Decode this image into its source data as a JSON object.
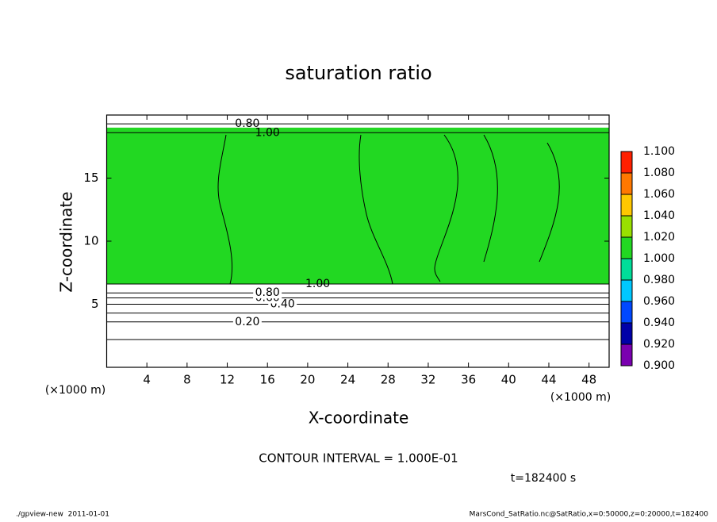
{
  "chart_data": {
    "type": "contour",
    "title": "saturation ratio",
    "x_label": "X-coordinate",
    "y_label": "Z-coordinate",
    "x_unit_left": "(×1000 m)",
    "x_unit_right": "(×1000 m)",
    "xlim": [
      0,
      50
    ],
    "ylim": [
      0,
      20
    ],
    "xticks": [
      4,
      8,
      12,
      16,
      20,
      24,
      28,
      32,
      36,
      40,
      44,
      48
    ],
    "yticks": [
      5,
      10,
      15
    ],
    "shaded_region": {
      "value": 1.01,
      "z": [
        6.6,
        19.0
      ]
    },
    "contours": [
      {
        "level": 0.1,
        "z": 2.2
      },
      {
        "level": 0.2,
        "z": 3.6,
        "label": "0.20"
      },
      {
        "level": 0.3,
        "z": 4.3
      },
      {
        "level": 0.4,
        "z": 5.0,
        "label": "0.40"
      },
      {
        "level": 0.6,
        "z": 5.5,
        "label": "0.60"
      },
      {
        "level": 0.8,
        "z": 5.9,
        "label": "0.80"
      },
      {
        "level": 1.0,
        "z": 6.6,
        "label": "1.00"
      },
      {
        "level": 1.0,
        "z": 18.6,
        "label": "1.00"
      },
      {
        "level": 0.8,
        "z": 19.3,
        "label": "0.80"
      }
    ],
    "colorbar": {
      "ticks": [
        {
          "value": 0.9,
          "label": "0.900"
        },
        {
          "value": 0.92,
          "label": "0.920"
        },
        {
          "value": 0.94,
          "label": "0.940"
        },
        {
          "value": 0.96,
          "label": "0.960"
        },
        {
          "value": 0.98,
          "label": "0.980"
        },
        {
          "value": 1.0,
          "label": "1.000"
        },
        {
          "value": 1.02,
          "label": "1.020"
        },
        {
          "value": 1.04,
          "label": "1.040"
        },
        {
          "value": 1.06,
          "label": "1.060"
        },
        {
          "value": 1.08,
          "label": "1.080"
        },
        {
          "value": 1.1,
          "label": "1.100"
        }
      ],
      "colors": [
        "#7a00b0",
        "#0000a8",
        "#0048ff",
        "#00c8ff",
        "#00dd99",
        "#22d822",
        "#99e000",
        "#ffc800",
        "#ff7800",
        "#ff2000"
      ]
    },
    "contour_interval": "CONTOUR INTERVAL = 1.000E-01",
    "time_label": "t=182400 s",
    "footer_left": "./gpview-new  2011-01-01",
    "footer_right": "MarsCond_SatRatio.nc@SatRatio,x=0:50000,z=0:20000,t=182400"
  }
}
